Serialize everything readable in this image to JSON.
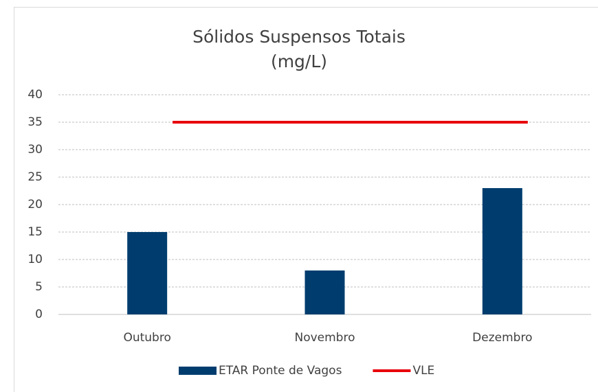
{
  "chart_data": {
    "type": "bar",
    "title": "Sólidos Suspensos Totais (mg/L)",
    "categories": [
      "Outubro",
      "Novembro",
      "Dezembro"
    ],
    "series": [
      {
        "name": "ETAR Ponte de Vagos",
        "type": "bar",
        "color": "#003d6e",
        "values": [
          15,
          8,
          23
        ]
      },
      {
        "name": "VLE",
        "type": "line",
        "color": "#e8000b",
        "values": [
          35,
          35,
          35
        ]
      }
    ],
    "ylim": [
      0,
      40
    ],
    "yticks": [
      0,
      5,
      10,
      15,
      20,
      25,
      30,
      35,
      40
    ],
    "grid": true,
    "legend": "bottom"
  }
}
